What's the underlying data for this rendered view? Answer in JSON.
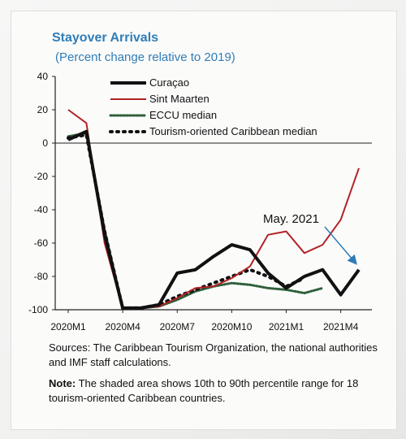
{
  "colors": {
    "title": "#2f7db8",
    "curacao": "#111111",
    "sint_maarten": "#b22226",
    "eccu": "#2f5f3a",
    "tourism": "#111111",
    "annotation_arrow": "#2f7db8"
  },
  "chart_data": {
    "type": "line",
    "title": "Stayover Arrivals",
    "subtitle": "(Percent change relative to 2019)",
    "xlabel": "",
    "ylabel": "",
    "ylim": [
      -100,
      40
    ],
    "yticks": [
      40,
      20,
      0,
      -20,
      -40,
      -60,
      -80,
      -100
    ],
    "x": [
      "2020M1",
      "2020M2",
      "2020M3",
      "2020M4",
      "2020M5",
      "2020M6",
      "2020M7",
      "2020M8",
      "2020M9",
      "2020M10",
      "2020M11",
      "2020M12",
      "2021M1",
      "2021M2",
      "2021M3",
      "2021M4",
      "2021M5"
    ],
    "xtick_labels": [
      "2020M1",
      "2020M4",
      "2020M7",
      "2020M10",
      "2021M1",
      "2021M4"
    ],
    "grid": false,
    "legend_position": "top-right",
    "series": [
      {
        "name": "Curaçao",
        "style": "solid-thick",
        "values": [
          2,
          7,
          -55,
          -99,
          -99,
          -97,
          -78,
          -76,
          -68,
          -61,
          -64,
          -78,
          -87,
          -80,
          -76,
          -91,
          -76
        ]
      },
      {
        "name": "Sint Maarten",
        "style": "solid",
        "values": [
          20,
          12,
          -60,
          -99,
          -99,
          -98,
          -93,
          -87,
          -86,
          -81,
          -74,
          -55,
          -53,
          -66,
          -61,
          -46,
          -15
        ]
      },
      {
        "name": "ECCU median",
        "style": "dotted",
        "values": [
          4,
          6,
          -52,
          -99,
          -99,
          -98,
          -94,
          -89,
          -86,
          -84,
          -85,
          -87,
          -88,
          -90,
          -87,
          null,
          null
        ]
      },
      {
        "name": "Tourism-oriented Caribbean median",
        "style": "dotted-thick",
        "values": [
          3,
          5,
          -53,
          -99,
          -99,
          -97,
          -92,
          -88,
          -84,
          -80,
          -76,
          -80,
          -86,
          -81,
          null,
          null,
          null
        ]
      }
    ],
    "annotations": [
      {
        "text": "May. 2021",
        "points_to": "2021M5"
      }
    ]
  },
  "footer": {
    "sources": "Sources: The Caribbean Tourism Organization, the national authorities and IMF staff calculations.",
    "note_label": "Note:",
    "note_text": " The shaded area shows 10th to 90th percentile range for 18 tourism-oriented Caribbean countries."
  }
}
